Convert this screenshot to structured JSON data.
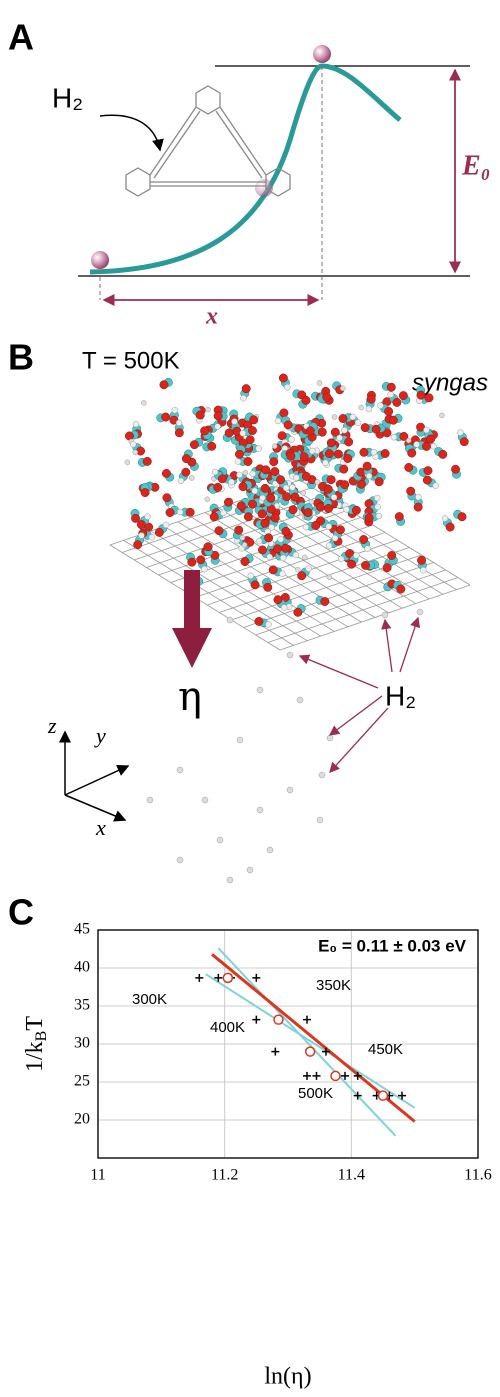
{
  "panel_a": {
    "letter": "A",
    "h2_label": "H₂",
    "barrier_label": "E₀",
    "distance_label": "x"
  },
  "panel_b": {
    "letter": "B",
    "temperature_label": "T = 500K",
    "gas_label": "syngas",
    "flux_label": "η",
    "h2_label": "H₂",
    "axis_z": "z",
    "axis_y": "y",
    "axis_x": "x"
  },
  "panel_c": {
    "letter": "C"
  },
  "chart_data": {
    "type": "scatter",
    "title": "E₀ = 0.11 ± 0.03 eV",
    "xlabel": "ln(η)",
    "ylabel_parts": [
      "1/k",
      "B",
      "T"
    ],
    "xlim": [
      11,
      11.6
    ],
    "xticks": [
      11,
      11.2,
      11.4,
      11.6
    ],
    "ylim": [
      15,
      45
    ],
    "yticks": [
      20,
      25,
      30,
      35,
      40,
      45
    ],
    "grid": true,
    "group_labels": [
      "300K",
      "350K",
      "400K",
      "450K",
      "500K"
    ],
    "points": {
      "color": "#000000",
      "x": [
        11.16,
        11.19,
        11.21,
        11.25,
        11.25,
        11.33,
        11.28,
        11.36,
        11.33,
        11.345,
        11.39,
        11.41,
        11.41,
        11.44,
        11.46,
        11.48
      ],
      "values": [
        38.7,
        38.7,
        38.7,
        38.7,
        33.2,
        33.2,
        29.0,
        29.0,
        25.8,
        25.8,
        25.8,
        25.8,
        23.2,
        23.2,
        23.2,
        23.2
      ]
    },
    "means": {
      "color": "#d9381e",
      "x": [
        11.205,
        11.285,
        11.335,
        11.375,
        11.45
      ],
      "values": [
        38.7,
        33.2,
        29.0,
        25.8,
        23.2
      ]
    },
    "fit": {
      "color": "#d9381e",
      "x": [
        11.18,
        11.5
      ],
      "values": [
        41.8,
        19.8
      ]
    },
    "bounds": [
      {
        "color": "#7fd3d8",
        "x": [
          11.17,
          11.5
        ],
        "values": [
          39.2,
          21.6
        ]
      },
      {
        "color": "#7fd3d8",
        "x": [
          11.19,
          11.47
        ],
        "values": [
          42.6,
          17.9
        ]
      }
    ]
  }
}
